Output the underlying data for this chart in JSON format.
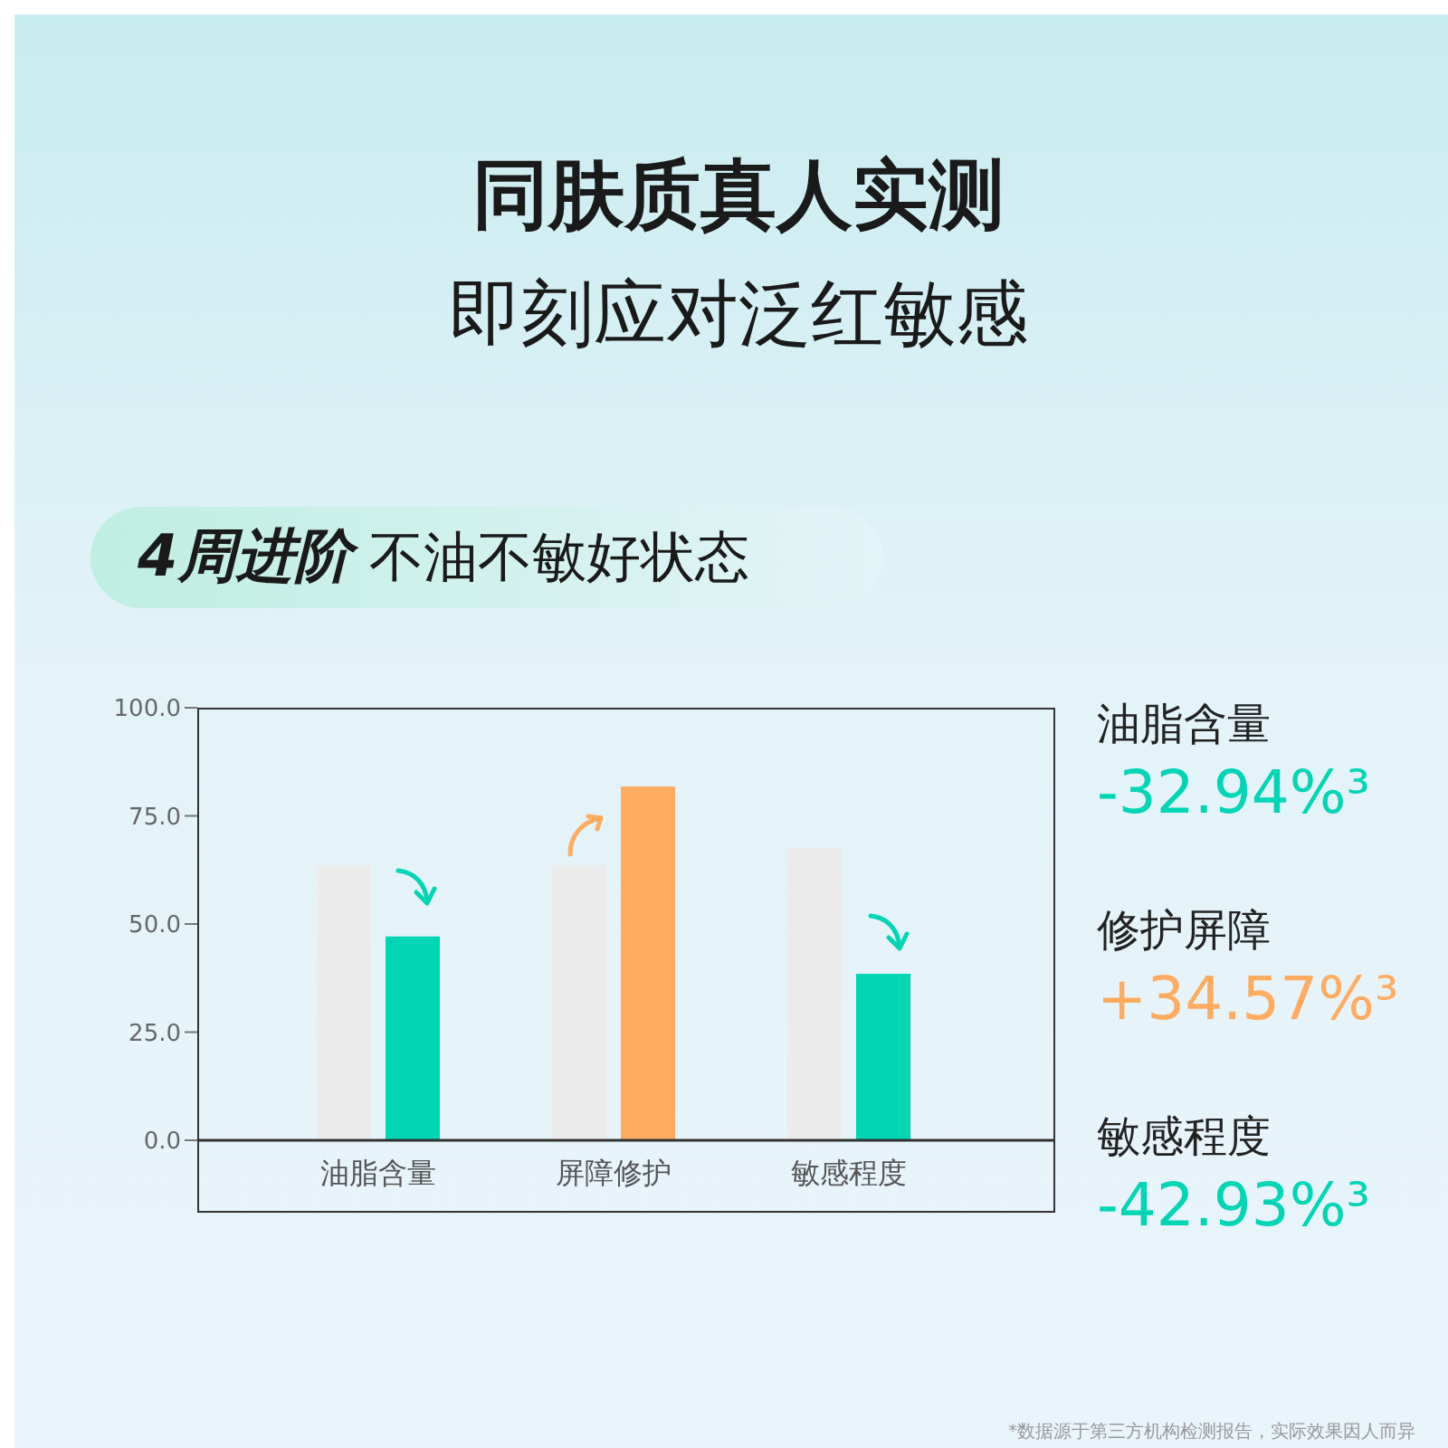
{
  "chart_data": {
    "type": "bar",
    "title": "同肤质真人实测",
    "subtitle": "即刻应对泛红敏感",
    "categories": [
      "油脂含量",
      "屏障修护",
      "敏感程度"
    ],
    "series": [
      {
        "color": "#ebebeb",
        "values": [
          63.6,
          63.6,
          67.6
        ]
      },
      {
        "color": "#00d6b4",
        "colors": [
          "#00d6b4",
          "#ffab60",
          "#00d6b4"
        ],
        "values": [
          47.1,
          81.8,
          38.5
        ]
      }
    ],
    "ylim": [
      0,
      100
    ],
    "yticks": [
      {
        "value": 0,
        "label": "0.0"
      },
      {
        "value": 25,
        "label": "25.0"
      },
      {
        "value": 50,
        "label": "50.0"
      },
      {
        "value": 75,
        "label": "75.0"
      },
      {
        "value": 100,
        "label": "100.0"
      }
    ],
    "annotations": [
      "4周进阶 不油不敏好状态",
      "油脂含量",
      "-32.94%³",
      "修护屏障",
      "+34.57%³",
      "敏感程度",
      "-42.93%³",
      "*数据源于第三方机构检测报告，实际效果因人而异"
    ]
  }
}
